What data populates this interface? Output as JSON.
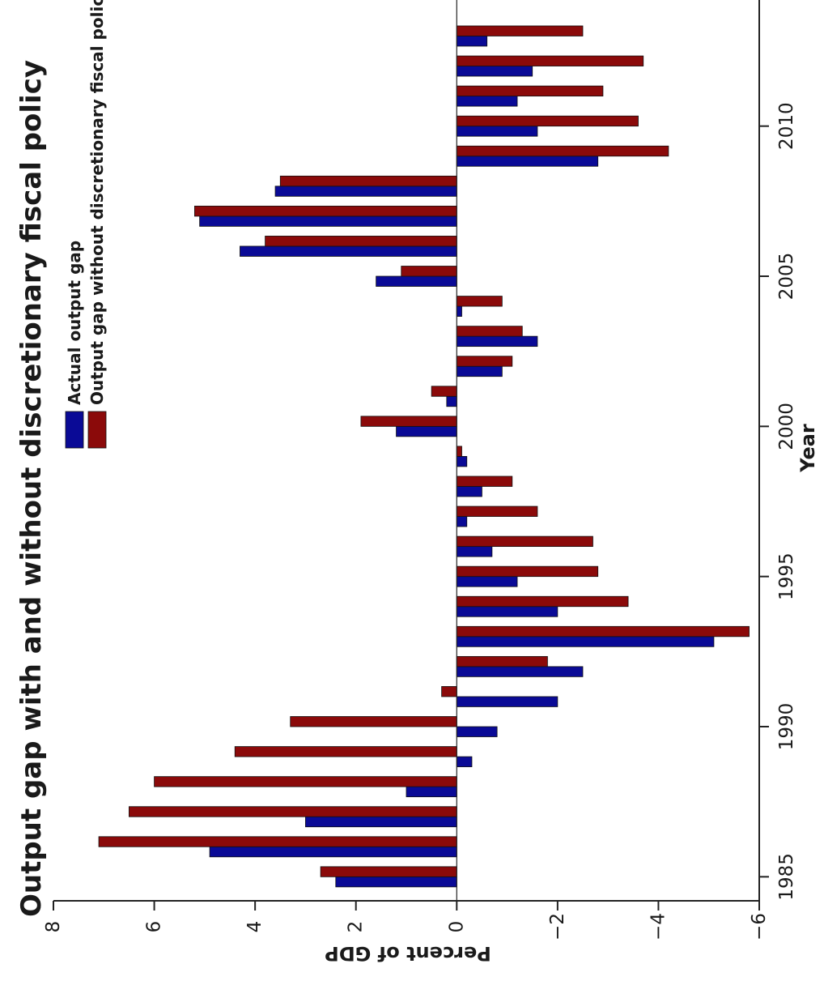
{
  "chart_data": {
    "type": "bar",
    "orientation": "rotated-90-ccw",
    "title": "Output gap with and without discretionary fiscal policy",
    "xlabel": "Year",
    "ylabel": "Percent of GDP",
    "xlim": [
      1984.2,
      2014.2
    ],
    "ylim": [
      -6,
      8
    ],
    "xticks": [
      1985,
      1990,
      1995,
      2000,
      2005,
      2010
    ],
    "yticks": [
      8,
      6,
      4,
      2,
      0,
      -2,
      -4,
      -6
    ],
    "ytick_labels": [
      "8",
      "6",
      "4",
      "2",
      "0",
      "−2",
      "−4",
      "−6"
    ],
    "legend_position": "top-left",
    "categories": [
      1985,
      1986,
      1987,
      1988,
      1989,
      1990,
      1991,
      1992,
      1993,
      1994,
      1995,
      1996,
      1997,
      1998,
      1999,
      2000,
      2001,
      2002,
      2003,
      2004,
      2005,
      2006,
      2007,
      2008,
      2009,
      2010,
      2011,
      2012,
      2013
    ],
    "series": [
      {
        "name": "Actual output gap",
        "color": "#0a0a96",
        "values": [
          2.4,
          4.9,
          3.0,
          1.0,
          -0.3,
          -0.8,
          -2.0,
          -2.5,
          -5.1,
          -2.0,
          -1.2,
          -0.7,
          -0.2,
          -0.5,
          -0.2,
          1.2,
          0.2,
          -0.9,
          -1.6,
          -0.1,
          1.6,
          4.3,
          5.1,
          3.6,
          -2.8,
          -1.6,
          -1.2,
          -1.5,
          -0.6
        ]
      },
      {
        "name": "Output gap without discretionary fiscal policy",
        "color": "#8b0a0a",
        "values": [
          2.7,
          7.1,
          6.5,
          6.0,
          4.4,
          3.3,
          0.3,
          -1.8,
          -5.8,
          -3.4,
          -2.8,
          -2.7,
          -1.6,
          -1.1,
          -0.1,
          1.9,
          0.5,
          -1.1,
          -1.3,
          -0.9,
          1.1,
          3.8,
          5.2,
          3.5,
          -4.2,
          -3.6,
          -2.9,
          -3.7,
          -2.5
        ]
      }
    ]
  }
}
